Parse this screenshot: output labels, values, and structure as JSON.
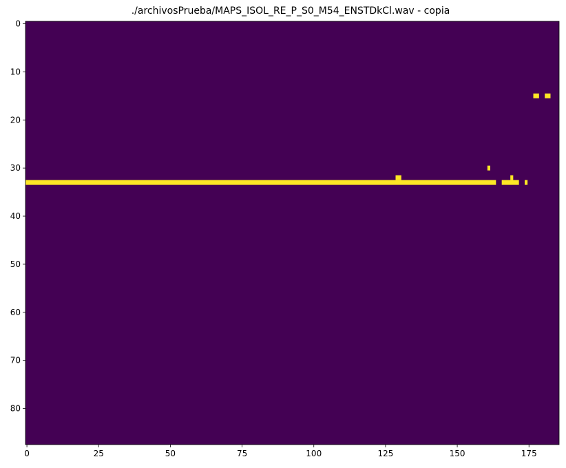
{
  "chart_data": {
    "type": "heatmap",
    "title": "./archivosPrueba/MAPS_ISOL_RE_P_S0_M54_ENSTDkCl.wav - copia",
    "xlabel": "",
    "ylabel": "",
    "n_cols": 186,
    "n_rows": 88,
    "xlim": [
      -0.5,
      185.5
    ],
    "ylim": [
      87.5,
      -0.5
    ],
    "x_ticks": [
      0,
      25,
      50,
      75,
      100,
      125,
      150,
      175
    ],
    "y_ticks": [
      0,
      10,
      20,
      30,
      40,
      50,
      60,
      70,
      80
    ],
    "x_tick_labels": [
      "0",
      "25",
      "50",
      "75",
      "100",
      "125",
      "150",
      "175"
    ],
    "y_tick_labels": [
      "0",
      "10",
      "20",
      "30",
      "40",
      "50",
      "60",
      "70",
      "80"
    ],
    "colormap": {
      "low": "#440154",
      "high": "#fde725"
    },
    "grid": false,
    "active_cells": [
      {
        "row": 33,
        "col_start": 0,
        "col_end": 163
      },
      {
        "row": 33,
        "col_start": 166,
        "col_end": 171
      },
      {
        "row": 33,
        "col_start": 174,
        "col_end": 174
      },
      {
        "row": 32,
        "col_start": 129,
        "col_end": 130
      },
      {
        "row": 32,
        "col_start": 169,
        "col_end": 169
      },
      {
        "row": 30,
        "col_start": 161,
        "col_end": 161
      },
      {
        "row": 15,
        "col_start": 177,
        "col_end": 178
      },
      {
        "row": 15,
        "col_start": 181,
        "col_end": 182
      }
    ]
  }
}
